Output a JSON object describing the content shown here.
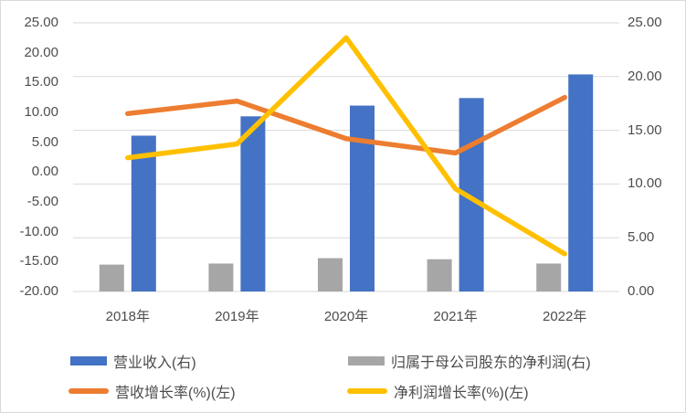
{
  "chart_data": {
    "type": "combo-bar-line",
    "title": "",
    "categories": [
      "2018年",
      "2019年",
      "2020年",
      "2021年",
      "2022年"
    ],
    "series": [
      {
        "name": "营业收入(右)",
        "type": "bar",
        "axis": "right",
        "group_side": "right",
        "color": "#4472C4",
        "values": [
          14.5,
          16.3,
          17.3,
          18.0,
          20.2
        ]
      },
      {
        "name": "归属于母公司股东的净利润(右)",
        "type": "bar",
        "axis": "right",
        "group_side": "left",
        "color": "#A6A6A6",
        "values": [
          2.5,
          2.6,
          3.1,
          3.0,
          2.6
        ]
      },
      {
        "name": "营收增长率(%)(左)",
        "type": "line",
        "axis": "left",
        "color": "#ED7D31",
        "values": [
          9.8,
          11.9,
          5.6,
          3.2,
          12.5
        ]
      },
      {
        "name": "净利润增长率(%)(左)",
        "type": "line",
        "axis": "left",
        "color": "#FFC000",
        "values": [
          2.4,
          4.7,
          22.5,
          -2.8,
          -13.7
        ]
      }
    ],
    "left_axis": {
      "min": -20,
      "max": 25,
      "step": 5,
      "labels": [
        "25.00",
        "20.00",
        "15.00",
        "10.00",
        "5.00",
        "0.00",
        "-5.00",
        "-10.00",
        "-15.00",
        "-20.00"
      ]
    },
    "right_axis": {
      "min": 0,
      "max": 25,
      "step": 5,
      "labels": [
        "25.00",
        "20.00",
        "15.00",
        "10.00",
        "5.00",
        "0.00"
      ]
    },
    "grid": true,
    "gridline_color": "#D9D9D9",
    "legend_position": "bottom",
    "text_color": "#4d4d4d",
    "background": "#FFFFFF"
  }
}
